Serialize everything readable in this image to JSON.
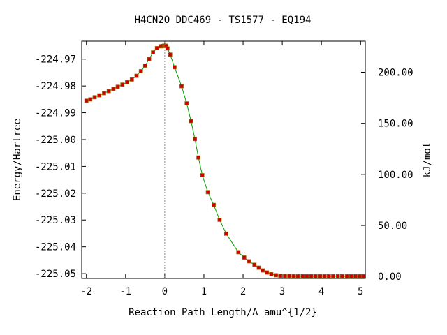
{
  "chart_data": {
    "type": "line",
    "title": "H4CN2O   DDC469 - TS1577 - EQ194",
    "xlabel": "Reaction Path Length/A amu^{1/2}",
    "ylabel": "Energy/Hartree",
    "y2label": "kJ/mol",
    "xlim": [
      -2.12,
      5.12
    ],
    "ylim": [
      -225.0518,
      -224.9633
    ],
    "y2lim": [
      -1.9,
      230.4
    ],
    "grid": false,
    "legend": "none",
    "xticks": [
      -2,
      -1,
      0,
      1,
      2,
      3,
      4,
      5
    ],
    "xtick_labels": [
      "-2",
      "-1",
      "0",
      "1",
      "2",
      "3",
      "4",
      "5"
    ],
    "yticks": [
      -224.97,
      -224.98,
      -224.99,
      -225.0,
      -225.01,
      -225.02,
      -225.03,
      -225.04,
      -225.05
    ],
    "ytick_labels": [
      "-224.97",
      "-224.98",
      "-224.99",
      "-225.00",
      "-225.01",
      "-225.02",
      "-225.03",
      "-225.04",
      "-225.05"
    ],
    "y2ticks": [
      0,
      50,
      100,
      150,
      200
    ],
    "y2tick_labels": [
      "0.00",
      "50.00",
      "100.00",
      "150.00",
      "200.00"
    ],
    "ts_marker_x": 0,
    "colors": {
      "line": "#00a000",
      "marker_fill": "#cc0000",
      "marker_edge": "#a05a00",
      "ts_line": "#909090"
    },
    "series": [
      {
        "x": [
          -2.0,
          -1.9,
          -1.79,
          -1.67,
          -1.55,
          -1.43,
          -1.31,
          -1.2,
          -1.08,
          -0.96,
          -0.84,
          -0.72,
          -0.61,
          -0.5,
          -0.4,
          -0.3,
          -0.2,
          -0.1,
          -0.05,
          -0.02,
          0.0,
          0.02,
          0.04,
          0.07,
          0.14,
          0.25,
          0.43,
          0.56,
          0.67,
          0.77,
          0.86,
          0.96,
          1.1,
          1.25,
          1.4,
          1.57,
          1.88,
          2.03,
          2.15,
          2.29,
          2.4,
          2.5,
          2.61,
          2.72,
          2.84,
          2.95,
          3.07,
          3.18,
          3.29,
          3.4,
          3.52,
          3.63,
          3.74,
          3.85,
          3.97,
          4.08,
          4.19,
          4.3,
          4.42,
          4.53,
          4.65,
          4.76,
          4.87,
          4.98,
          5.08
        ],
        "y": [
          -224.9855,
          -224.985,
          -224.9842,
          -224.9835,
          -224.9827,
          -224.9819,
          -224.9811,
          -224.9803,
          -224.9795,
          -224.9786,
          -224.9776,
          -224.9762,
          -224.9745,
          -224.9724,
          -224.97,
          -224.9675,
          -224.9659,
          -224.9652,
          -224.9651,
          -224.965,
          -224.965,
          -224.965,
          -224.9651,
          -224.966,
          -224.9683,
          -224.973,
          -224.9801,
          -224.9865,
          -224.9931,
          -224.9998,
          -225.0067,
          -225.0133,
          -225.0196,
          -225.0244,
          -225.0299,
          -225.0351,
          -225.042,
          -225.044,
          -225.0454,
          -225.0467,
          -225.0478,
          -225.0488,
          -225.0496,
          -225.0502,
          -225.0506,
          -225.0508,
          -225.0509,
          -225.0509,
          -225.051,
          -225.051,
          -225.051,
          -225.051,
          -225.051,
          -225.051,
          -225.051,
          -225.051,
          -225.051,
          -225.051,
          -225.051,
          -225.051,
          -225.051,
          -225.051,
          -225.051,
          -225.051,
          -225.051
        ]
      }
    ]
  }
}
